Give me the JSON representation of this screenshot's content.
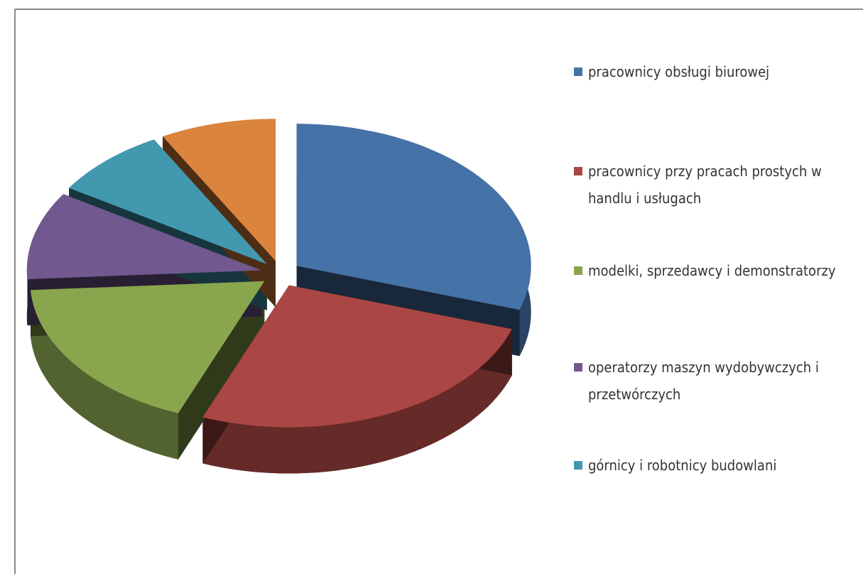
{
  "chart_data": {
    "type": "pie",
    "categories": [
      "pracownicy obsługi biurowej",
      "pracownicy przy pracach prostych w handlu i usługach",
      "modelki, sprzedawcy i demonstratorzy",
      "operatorzy maszyn wydobywczych i przetwórczych",
      "górnicy i robotnicy budowlani",
      null
    ],
    "values": [
      30,
      26,
      18,
      10,
      8,
      8
    ],
    "colors": [
      "#4572a7",
      "#aa4643",
      "#89a54e",
      "#71588f",
      "#4198af",
      "#db843d"
    ],
    "legend": "right"
  }
}
